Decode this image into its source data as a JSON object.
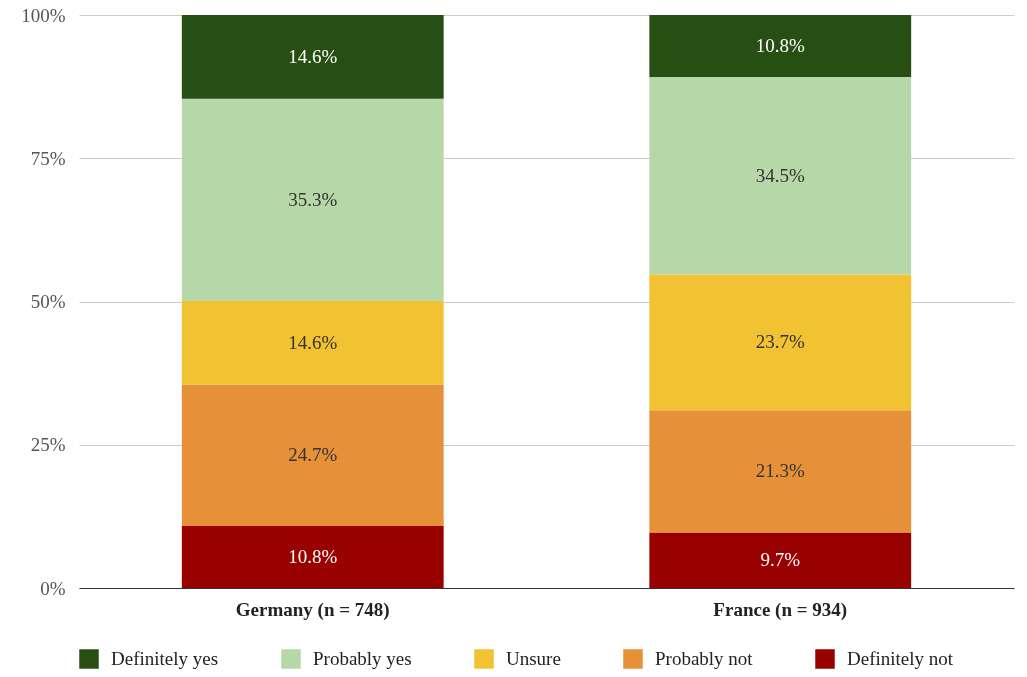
{
  "chart_data": {
    "type": "bar",
    "stacked": true,
    "categories": [
      "Germany (n = 748)",
      "France (n = 934)"
    ],
    "series": [
      {
        "name": "Definitely not",
        "color": "#990000",
        "values": [
          10.8,
          9.7
        ],
        "value_labels": [
          "10.8%",
          "9.7%"
        ]
      },
      {
        "name": "Probably not",
        "color": "#e69138",
        "values": [
          24.7,
          21.3
        ],
        "value_labels": [
          "24.7%",
          "21.3%"
        ]
      },
      {
        "name": "Unsure",
        "color": "#f1c232",
        "values": [
          14.6,
          23.7
        ],
        "value_labels": [
          "14.6%",
          "23.7%"
        ]
      },
      {
        "name": "Probably yes",
        "color": "#b6d7a8",
        "values": [
          35.3,
          34.5
        ],
        "value_labels": [
          "35.3%",
          "34.5%"
        ]
      },
      {
        "name": "Definitely yes",
        "color": "#274e13",
        "values": [
          14.6,
          10.8
        ],
        "value_labels": [
          "14.6%",
          "10.8%"
        ]
      }
    ],
    "ylim": [
      0,
      100
    ],
    "yticks": [
      {
        "value": 0,
        "label": "0%"
      },
      {
        "value": 25,
        "label": "25%"
      },
      {
        "value": 50,
        "label": "50%"
      },
      {
        "value": 75,
        "label": "75%"
      },
      {
        "value": 100,
        "label": "100%"
      }
    ],
    "grid": "y",
    "legend": "bottom"
  }
}
